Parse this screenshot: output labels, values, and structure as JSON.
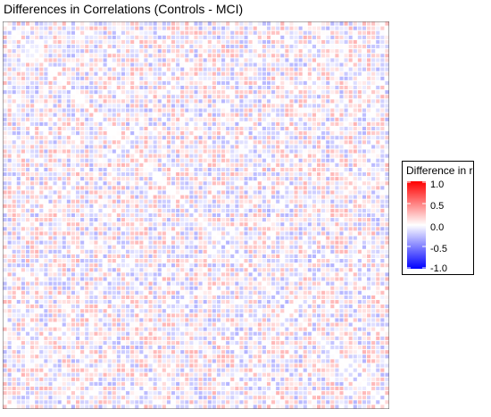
{
  "chart_data": {
    "type": "heatmap",
    "title": "Differences in Correlations (Controls - MCI)",
    "xlabel": "",
    "ylabel": "",
    "rows": 85,
    "cols": 85,
    "value_range": [
      -1.0,
      1.0
    ],
    "typical_abs_value_max": 0.3,
    "values_note": "Dense grid of small differences near 0; individual cell values not legible",
    "colorscale": {
      "low": "#0000ff",
      "mid": "#ffffff",
      "high": "#ff0000"
    },
    "legend": {
      "title": "Difference in r",
      "ticks": [
        "1.0",
        "0.5",
        "0.0",
        "-0.5",
        "-1.0"
      ],
      "position": "right"
    },
    "grid": true
  }
}
